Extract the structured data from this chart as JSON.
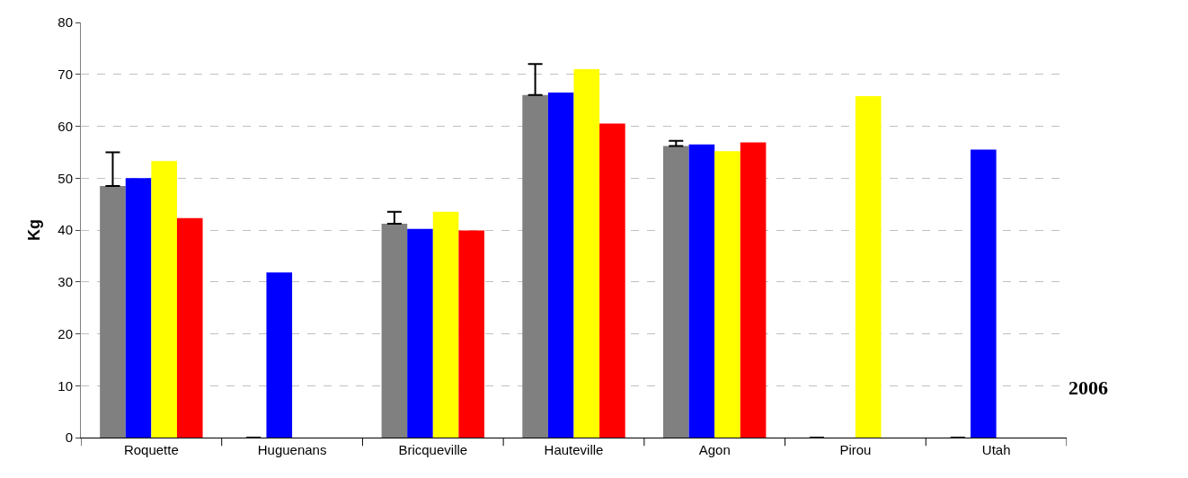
{
  "chart_data": {
    "type": "bar",
    "ylabel": "Kg",
    "categories": [
      "Roquette",
      "Huguenans",
      "Bricqueville",
      "Hauteville",
      "Agon",
      "Pirou",
      "Utah"
    ],
    "series": [
      {
        "color": "#808080",
        "values": [
          48.5,
          0,
          41.2,
          66,
          56.2,
          0,
          0
        ],
        "errors": [
          [
            48.5,
            55
          ],
          null,
          [
            41.2,
            43.5
          ],
          [
            66,
            72
          ],
          [
            56.2,
            57.2
          ],
          null,
          null
        ]
      },
      {
        "color": "#0000ff",
        "values": [
          50,
          31.8,
          40.2,
          66.5,
          56.5,
          null,
          55.5
        ]
      },
      {
        "color": "#ffff00",
        "values": [
          53.3,
          null,
          43.5,
          71,
          55.2,
          65.8,
          null
        ]
      },
      {
        "color": "#ff0000",
        "values": [
          42.3,
          null,
          39.9,
          60.5,
          56.9,
          null,
          null
        ]
      }
    ],
    "annotations": [
      "2006"
    ],
    "ylim": [
      0,
      80
    ],
    "yticks": [
      0,
      10,
      20,
      30,
      40,
      50,
      60,
      70,
      80
    ],
    "grid": "y"
  }
}
